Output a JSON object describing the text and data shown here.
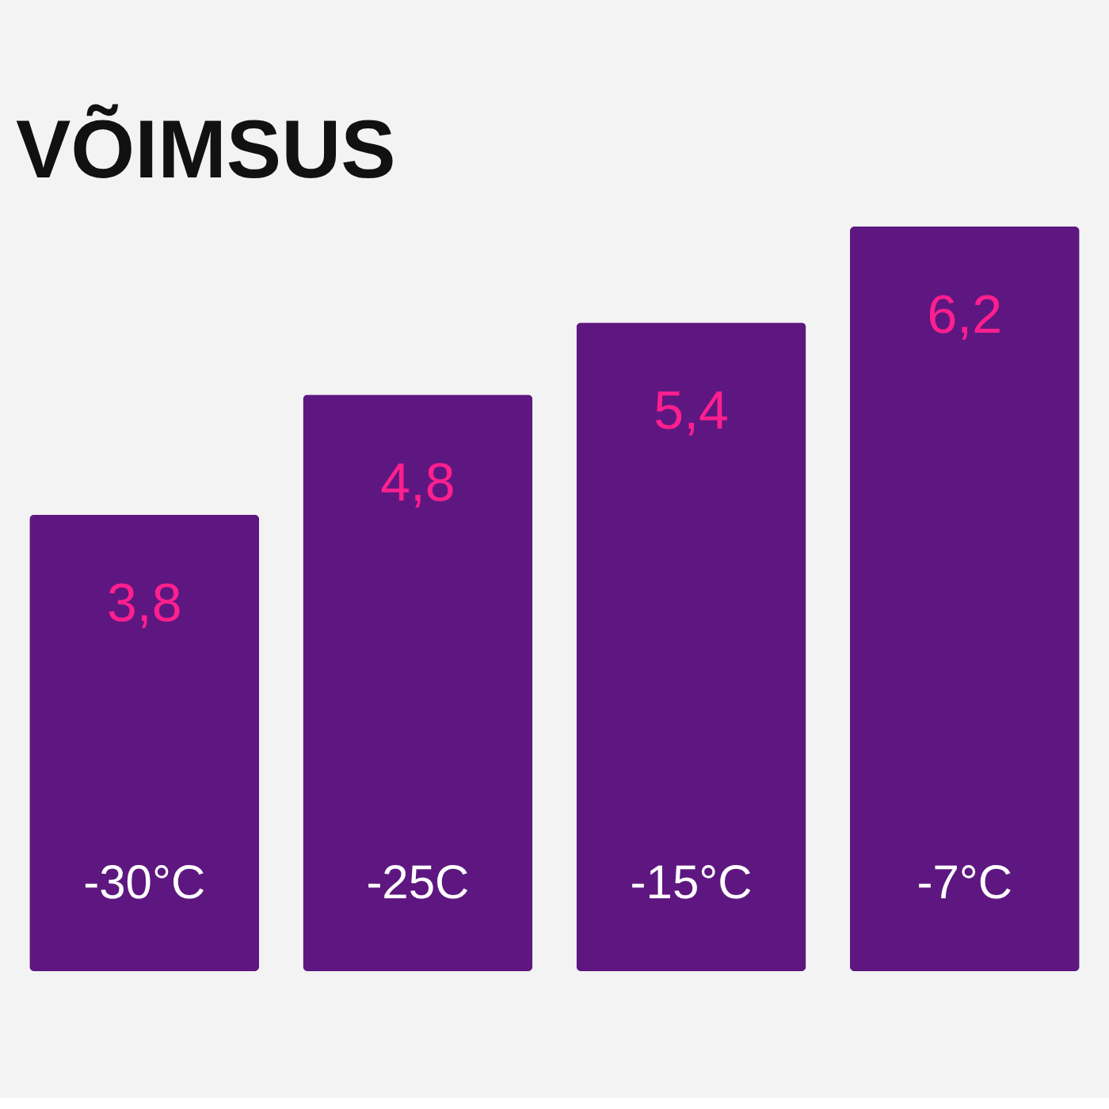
{
  "chart_data": {
    "type": "bar",
    "title": "VÕIMSUS",
    "categories": [
      "-30°C",
      "-25C",
      "-15°C",
      "-7°C"
    ],
    "values": [
      3.8,
      4.8,
      5.4,
      6.2
    ],
    "value_labels": [
      "3,8",
      "4,8",
      "5,4",
      "6,2"
    ],
    "color": "#5e1780",
    "grid": false,
    "tick_labels": false
  }
}
